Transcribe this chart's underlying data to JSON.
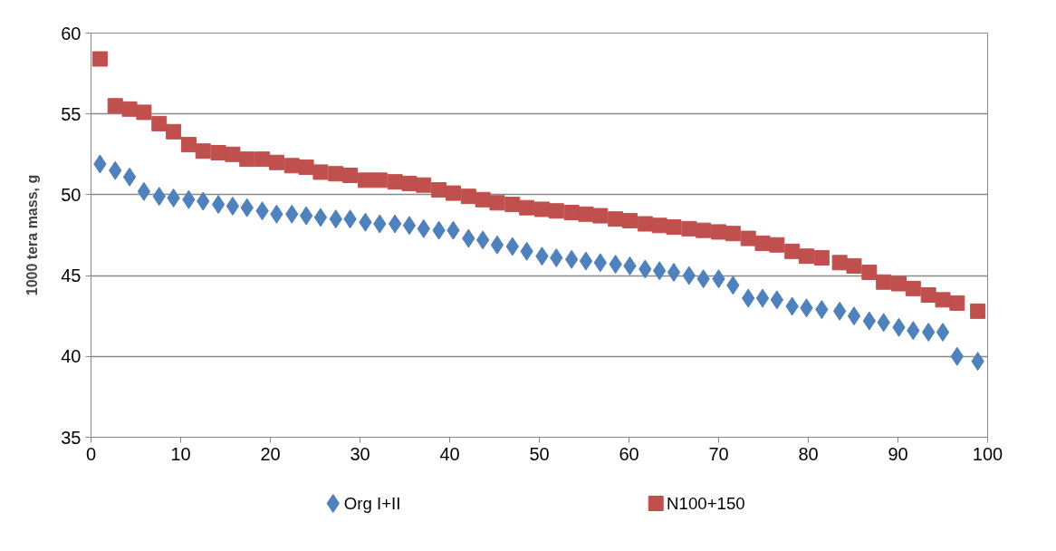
{
  "chart_data": {
    "type": "scatter",
    "ylabel": "1000 tera mass, g",
    "x": [
      1,
      2.7,
      4.3,
      5.9,
      7.6,
      9.2,
      10.9,
      12.5,
      14.2,
      15.8,
      17.4,
      19.1,
      20.7,
      22.4,
      24,
      25.6,
      27.3,
      28.9,
      30.6,
      32.2,
      33.9,
      35.5,
      37.1,
      38.8,
      40.4,
      42.1,
      43.7,
      45.3,
      47,
      48.6,
      50.3,
      51.9,
      53.6,
      55.2,
      56.8,
      58.5,
      60.1,
      61.8,
      63.4,
      65,
      66.7,
      68.3,
      70,
      71.6,
      73.3,
      74.9,
      76.5,
      78.2,
      79.8,
      81.5,
      83.5,
      85.1,
      86.8,
      88.4,
      90.1,
      91.7,
      93.4,
      95,
      96.6,
      98.9
    ],
    "series": [
      {
        "name": "Org I+II",
        "color": "#4f81bd",
        "marker": "diamond",
        "values": [
          51.9,
          51.5,
          51.1,
          50.2,
          49.9,
          49.8,
          49.7,
          49.6,
          49.4,
          49.3,
          49.2,
          49.0,
          48.8,
          48.8,
          48.7,
          48.6,
          48.5,
          48.5,
          48.3,
          48.2,
          48.2,
          48.1,
          47.9,
          47.8,
          47.8,
          47.3,
          47.2,
          46.9,
          46.8,
          46.5,
          46.2,
          46.1,
          46.0,
          45.9,
          45.8,
          45.7,
          45.6,
          45.4,
          45.3,
          45.2,
          45.0,
          44.8,
          44.8,
          44.4,
          43.6,
          43.6,
          43.5,
          43.1,
          43.0,
          42.9,
          42.8,
          42.5,
          42.2,
          42.1,
          41.8,
          41.6,
          41.5,
          41.5,
          40.0,
          39.7
        ]
      },
      {
        "name": "N100+150",
        "color": "#c0504d",
        "marker": "square",
        "values": [
          58.4,
          55.5,
          55.3,
          55.1,
          54.4,
          53.9,
          53.1,
          52.7,
          52.6,
          52.5,
          52.2,
          52.2,
          52.0,
          51.8,
          51.7,
          51.4,
          51.3,
          51.2,
          50.9,
          50.9,
          50.8,
          50.7,
          50.6,
          50.3,
          50.1,
          49.9,
          49.7,
          49.5,
          49.4,
          49.2,
          49.1,
          49.0,
          48.9,
          48.8,
          48.7,
          48.5,
          48.4,
          48.2,
          48.1,
          48.0,
          47.9,
          47.8,
          47.7,
          47.6,
          47.3,
          47.0,
          46.9,
          46.5,
          46.2,
          46.1,
          45.8,
          45.6,
          45.2,
          44.6,
          44.5,
          44.2,
          43.8,
          43.5,
          43.3,
          42.8
        ]
      }
    ],
    "xlim": [
      0,
      100
    ],
    "xticks": [
      0,
      10,
      20,
      30,
      40,
      50,
      60,
      70,
      80,
      90,
      100
    ],
    "ylim": [
      35,
      60
    ],
    "yticks": [
      35,
      40,
      45,
      50,
      55,
      60
    ],
    "grid": "y",
    "legend": "bottom"
  }
}
